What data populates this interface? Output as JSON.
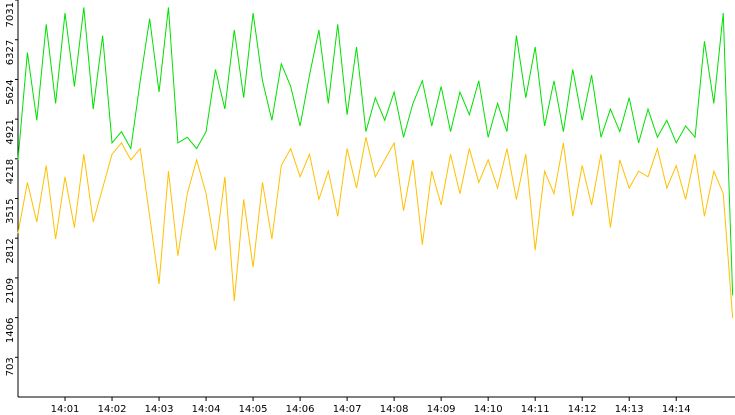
{
  "chart_data": {
    "type": "line",
    "x": [
      0,
      0.2,
      0.4,
      0.6,
      0.8,
      1,
      1.2,
      1.4,
      1.6,
      1.8,
      2,
      2.2,
      2.4,
      2.6,
      2.8,
      3,
      3.2,
      3.4,
      3.6,
      3.8,
      4,
      4.2,
      4.4,
      4.6,
      4.8,
      5,
      5.2,
      5.4,
      5.6,
      5.8,
      6,
      6.2,
      6.4,
      6.6,
      6.8,
      7,
      7.2,
      7.4,
      7.6,
      7.8,
      8,
      8.2,
      8.4,
      8.6,
      8.8,
      9,
      9.2,
      9.4,
      9.6,
      9.8,
      10,
      10.2,
      10.4,
      10.6,
      10.8,
      11,
      11.2,
      11.4,
      11.6,
      11.8,
      12,
      12.2,
      12.4,
      12.6,
      12.8,
      13,
      13.2,
      13.4,
      13.6,
      13.8,
      14,
      14.2,
      14.4,
      14.6,
      14.8,
      15,
      15.2
    ],
    "series": [
      {
        "color": "#00e000",
        "values": [
          4200,
          6100,
          4900,
          6600,
          5200,
          6800,
          5500,
          6900,
          5100,
          6400,
          4500,
          4700,
          4400,
          5600,
          6700,
          5400,
          6900,
          4500,
          4600,
          4400,
          4700,
          5800,
          5100,
          6500,
          5300,
          6800,
          5600,
          4900,
          5900,
          5500,
          4800,
          5700,
          6500,
          5200,
          6600,
          5000,
          6200,
          4700,
          5300,
          4900,
          5400,
          4600,
          5200,
          5600,
          4800,
          5500,
          4700,
          5400,
          5000,
          5600,
          4600,
          5200,
          4700,
          6400,
          5300,
          6200,
          4800,
          5600,
          4700,
          5800,
          4900,
          5700,
          4600,
          5100,
          4700,
          5300,
          4500,
          5100,
          4600,
          4900,
          4500,
          4800,
          4600,
          6300,
          5200,
          6800,
          1800
        ]
      },
      {
        "color": "#ffc000",
        "values": [
          2900,
          3800,
          3100,
          4100,
          2800,
          3900,
          3000,
          4300,
          3100,
          3700,
          4300,
          4500,
          4200,
          4400,
          3200,
          2000,
          4000,
          2500,
          3600,
          4200,
          3600,
          2600,
          3900,
          1700,
          3500,
          2300,
          3800,
          2800,
          4100,
          4400,
          3900,
          4300,
          3500,
          4000,
          3200,
          4400,
          3700,
          4600,
          3900,
          4200,
          4500,
          3300,
          4200,
          2700,
          4000,
          3400,
          4300,
          3600,
          4400,
          3800,
          4200,
          3700,
          4400,
          3500,
          4300,
          2600,
          4000,
          3600,
          4500,
          3200,
          4100,
          3400,
          4300,
          3000,
          4200,
          3700,
          4000,
          3900,
          4400,
          3700,
          4100,
          3500,
          4300,
          3200,
          4000,
          3600,
          1400
        ]
      }
    ],
    "xlim": [
      0,
      15.25
    ],
    "xticks": [
      {
        "value": 1,
        "label": "14:01"
      },
      {
        "value": 2,
        "label": "14:02"
      },
      {
        "value": 3,
        "label": "14:03"
      },
      {
        "value": 4,
        "label": "14:04"
      },
      {
        "value": 5,
        "label": "14:05"
      },
      {
        "value": 6,
        "label": "14:06"
      },
      {
        "value": 7,
        "label": "14:07"
      },
      {
        "value": 8,
        "label": "14:08"
      },
      {
        "value": 9,
        "label": "14:09"
      },
      {
        "value": 10,
        "label": "14:10"
      },
      {
        "value": 11,
        "label": "14:11"
      },
      {
        "value": 12,
        "label": "14:12"
      },
      {
        "value": 13,
        "label": "14:13"
      },
      {
        "value": 14,
        "label": "14:14"
      }
    ],
    "ylim": [
      0,
      7031
    ],
    "yticks": [
      703,
      1406,
      2109,
      2812,
      3515,
      4218,
      4921,
      5624,
      6327,
      7031
    ]
  }
}
